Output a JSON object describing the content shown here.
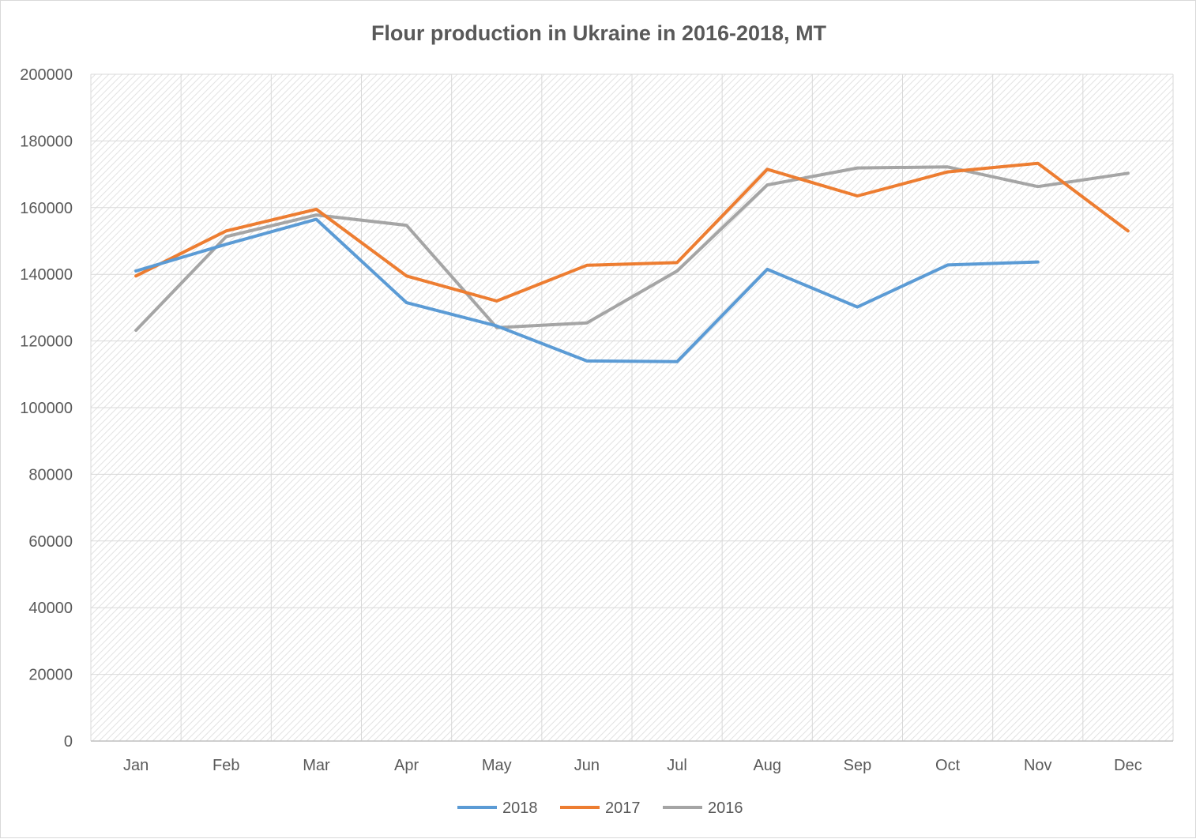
{
  "chart_data": {
    "type": "line",
    "title": "Flour production in Ukraine in 2016-2018, MT",
    "xlabel": "",
    "ylabel": "",
    "categories": [
      "Jan",
      "Feb",
      "Mar",
      "Apr",
      "May",
      "Jun",
      "Jul",
      "Aug",
      "Sep",
      "Oct",
      "Nov",
      "Dec"
    ],
    "ylim": [
      0,
      200000
    ],
    "yticks": [
      "0",
      "20000",
      "40000",
      "60000",
      "80000",
      "100000",
      "120000",
      "140000",
      "160000",
      "180000",
      "200000"
    ],
    "grid": true,
    "legend_position": "bottom",
    "series": [
      {
        "name": "2018",
        "color": "#5b9bd5",
        "values": [
          141000,
          149000,
          156500,
          131500,
          124500,
          114000,
          113800,
          141500,
          130200,
          142800,
          143700,
          null
        ]
      },
      {
        "name": "2017",
        "color": "#ed7d31",
        "values": [
          139500,
          153000,
          159500,
          139500,
          132000,
          142700,
          143500,
          171500,
          163500,
          170700,
          173300,
          153000
        ]
      },
      {
        "name": "2016",
        "color": "#a5a5a5",
        "values": [
          123200,
          151300,
          157800,
          154700,
          124000,
          125400,
          141000,
          166800,
          171900,
          172200,
          166300,
          170300
        ]
      }
    ]
  }
}
